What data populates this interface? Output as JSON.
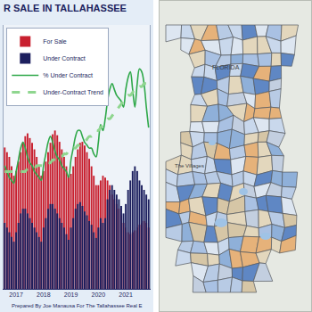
{
  "chart_data": {
    "type": "bar",
    "title": "R SALE IN TALLAHASSEE",
    "annotations": [
      "Prepared By Joe Manausa For The Tallahassee Real E"
    ],
    "categories": [
      null,
      null,
      null,
      null,
      null,
      "2017",
      null,
      null,
      null,
      null,
      null,
      null,
      null,
      null,
      null,
      null,
      null,
      "2018",
      null,
      null,
      null,
      null,
      null,
      null,
      null,
      null,
      null,
      null,
      null,
      "2019",
      null,
      null,
      null,
      null,
      null,
      null,
      null,
      null,
      null,
      null,
      null,
      "2020",
      null,
      null,
      null,
      null,
      null,
      null,
      null,
      null,
      null,
      null,
      null,
      "2021",
      null,
      null,
      null,
      null,
      null,
      null,
      null,
      null,
      null,
      null
    ],
    "series": [
      {
        "name": "For Sale",
        "type": "bar",
        "color": "#c8202f",
        "values": [
          1500,
          1450,
          1400,
          1300,
          1200,
          1250,
          1350,
          1450,
          1550,
          1620,
          1650,
          1600,
          1550,
          1480,
          1400,
          1300,
          1200,
          1250,
          1350,
          1450,
          1550,
          1640,
          1680,
          1630,
          1560,
          1480,
          1400,
          1300,
          1200,
          1220,
          1300,
          1400,
          1480,
          1550,
          1560,
          1520,
          1450,
          1380,
          1300,
          1200,
          1100,
          1100,
          1150,
          1200,
          1180,
          1150,
          1100,
          1000,
          950,
          900,
          850,
          780,
          700,
          650,
          600,
          580,
          600,
          620,
          650,
          680,
          700,
          720,
          700,
          650
        ]
      },
      {
        "name": "Under Contract",
        "type": "bar",
        "color": "#1c1f5e",
        "values": [
          700,
          650,
          600,
          550,
          500,
          600,
          700,
          800,
          850,
          850,
          800,
          750,
          700,
          650,
          600,
          550,
          500,
          650,
          750,
          850,
          900,
          900,
          850,
          800,
          750,
          700,
          650,
          580,
          520,
          650,
          750,
          850,
          900,
          920,
          880,
          820,
          780,
          720,
          680,
          600,
          540,
          650,
          750,
          700,
          750,
          950,
          1050,
          1100,
          1050,
          1000,
          950,
          880,
          800,
          900,
          1050,
          1150,
          1250,
          1300,
          1250,
          1150,
          1100,
          1050,
          1000,
          950
        ]
      },
      {
        "name": "% Under Contract",
        "type": "line",
        "axis": "y2",
        "color": "#2fa84a",
        "line_style": "solid",
        "values": [
          42,
          40,
          38,
          37,
          36,
          40,
          44,
          48,
          50,
          48,
          45,
          43,
          42,
          40,
          39,
          38,
          37,
          42,
          46,
          50,
          52,
          50,
          47,
          45,
          44,
          42,
          41,
          40,
          38,
          44,
          48,
          52,
          54,
          54,
          52,
          50,
          49,
          48,
          48,
          46,
          45,
          50,
          56,
          54,
          58,
          64,
          68,
          70,
          68,
          66,
          65,
          64,
          62,
          68,
          72,
          74,
          68,
          62,
          70,
          75,
          74,
          70,
          62,
          55
        ]
      },
      {
        "name": "Under-Contract Trend",
        "type": "line",
        "axis": "y2",
        "color": "#8fd68f",
        "line_style": "dashed",
        "values": [
          40,
          40,
          40,
          40,
          40,
          40,
          40,
          40,
          40,
          40,
          41,
          41,
          41,
          41,
          42,
          42,
          42,
          42,
          43,
          43,
          43,
          44,
          44,
          44,
          45,
          45,
          46,
          46,
          47,
          47,
          48,
          48,
          49,
          49,
          50,
          50,
          51,
          52,
          52,
          53,
          54,
          54,
          55,
          56,
          57,
          58,
          58,
          59,
          60,
          61,
          62,
          63,
          64,
          65,
          66,
          66,
          67,
          68,
          68,
          69,
          69,
          70,
          70,
          70
        ]
      }
    ],
    "ylim": [
      0,
      2800
    ],
    "y2lim": [
      0,
      90
    ],
    "stacked": false,
    "grid": false,
    "legend": "top-left",
    "tick_labels": "x"
  },
  "map": {
    "labels": [
      "FLORIDA",
      "The Villages"
    ]
  }
}
